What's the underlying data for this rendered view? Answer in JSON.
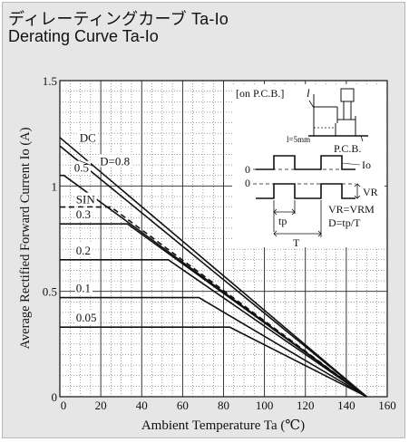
{
  "header": {
    "title_jp": "ディレーティングカーブ Ta-Io",
    "title_en": "Derating Curve Ta-Io"
  },
  "chart_data": {
    "type": "line",
    "xlabel": "Ambient Temperature Ta (℃)",
    "ylabel": "Average Rectified Forward Current Io (A)",
    "xlim": [
      0,
      160
    ],
    "ylim": [
      0,
      1.5
    ],
    "x_ticks": [
      "0",
      "20",
      "40",
      "60",
      "80",
      "100",
      "120",
      "140",
      "160"
    ],
    "y_ticks": [
      "0",
      "0.5",
      "1",
      "1.5"
    ],
    "grid": true,
    "series": [
      {
        "name": "DC",
        "dashed": false,
        "points": [
          [
            0,
            1.23
          ],
          [
            150,
            0
          ]
        ]
      },
      {
        "name": "D=0.8",
        "dashed": false,
        "points": [
          [
            0,
            1.19
          ],
          [
            150,
            0
          ]
        ]
      },
      {
        "name": "0.5",
        "dashed": false,
        "points": [
          [
            0,
            1.05
          ],
          [
            2,
            1.05
          ],
          [
            150,
            0
          ]
        ]
      },
      {
        "name": "SIN",
        "dashed": true,
        "points": [
          [
            0,
            0.9
          ],
          [
            25,
            0.9
          ],
          [
            150,
            0
          ]
        ]
      },
      {
        "name": "0.3",
        "dashed": false,
        "points": [
          [
            0,
            0.82
          ],
          [
            33,
            0.82
          ],
          [
            150,
            0
          ]
        ]
      },
      {
        "name": "0.2",
        "dashed": false,
        "points": [
          [
            0,
            0.65
          ],
          [
            53,
            0.65
          ],
          [
            150,
            0
          ]
        ]
      },
      {
        "name": "0.1",
        "dashed": false,
        "points": [
          [
            0,
            0.47
          ],
          [
            68,
            0.47
          ],
          [
            150,
            0
          ]
        ]
      },
      {
        "name": "0.05",
        "dashed": false,
        "points": [
          [
            0,
            0.33
          ],
          [
            83,
            0.33
          ],
          [
            150,
            0
          ]
        ]
      }
    ],
    "inset": {
      "pcb_label": "[on P.C.B.]",
      "l_label": "l",
      "l_value": "l=5mm",
      "pcb": "P.C.B.",
      "zero_1": "0",
      "zero_2": "0",
      "io": "Io",
      "vr": "VR",
      "tp": "tp",
      "t": "T",
      "eq1": "VR=VRM",
      "eq2": "D=tp/T"
    }
  }
}
